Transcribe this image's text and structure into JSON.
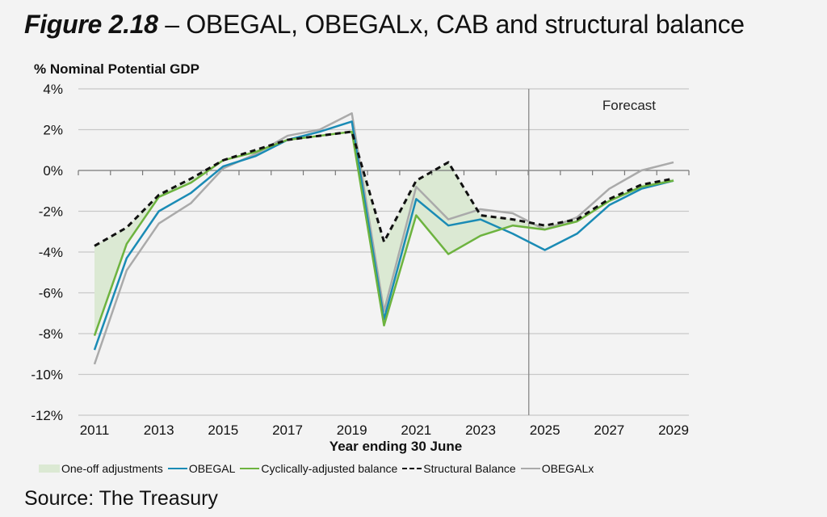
{
  "header": {
    "figure_label": "Figure 2.18",
    "title_rest": " – OBEGAL, OBEGALx, CAB and structural balance"
  },
  "source": "Source: The Treasury",
  "chart_data": {
    "type": "line",
    "title": "Figure 2.18 – OBEGAL, OBEGALx, CAB and structural balance",
    "ylabel": "% Nominal Potential GDP",
    "xlabel": "Year ending 30 June",
    "ylim": [
      -12,
      4
    ],
    "yticks": [
      4,
      2,
      0,
      -2,
      -4,
      -6,
      -8,
      -10,
      -12
    ],
    "ytick_labels": [
      "4%",
      "2%",
      "0%",
      "-2%",
      "-4%",
      "-6%",
      "-8%",
      "-10%",
      "-12%"
    ],
    "xlim": [
      2011,
      2029
    ],
    "xtick_labels": [
      "2011",
      "2013",
      "2015",
      "2017",
      "2019",
      "2021",
      "2023",
      "2025",
      "2027",
      "2029"
    ],
    "grid": true,
    "x": [
      2011,
      2012,
      2013,
      2014,
      2015,
      2016,
      2017,
      2018,
      2019,
      2020,
      2021,
      2022,
      2023,
      2024,
      2025,
      2026,
      2027,
      2028,
      2029
    ],
    "annotation": {
      "text": "Forecast",
      "divider_x": 2024.5
    },
    "area": {
      "name": "One-off adjustments",
      "between": [
        "Cyclically-adjusted balance",
        "Structural Balance"
      ],
      "color": "#dbe9d3"
    },
    "series": [
      {
        "name": "OBEGAL",
        "color": "#1a8bb5",
        "style": "solid",
        "values": [
          -8.8,
          -4.3,
          -2.0,
          -1.1,
          0.2,
          0.7,
          1.5,
          1.9,
          2.4,
          -7.3,
          -1.4,
          -2.7,
          -2.4,
          -3.1,
          -3.9,
          -3.1,
          -1.7,
          -0.9,
          -0.5
        ]
      },
      {
        "name": "Cyclically-adjusted balance",
        "color": "#6db33f",
        "style": "solid",
        "values": [
          -8.1,
          -3.6,
          -1.3,
          -0.6,
          0.5,
          0.9,
          1.5,
          1.7,
          1.9,
          -7.6,
          -2.2,
          -4.1,
          -3.2,
          -2.7,
          -2.9,
          -2.5,
          -1.5,
          -0.8,
          -0.5
        ]
      },
      {
        "name": "Structural Balance",
        "color": "#111111",
        "style": "dashed",
        "values": [
          -3.7,
          -2.8,
          -1.2,
          -0.4,
          0.5,
          1.0,
          1.5,
          1.7,
          1.9,
          -3.5,
          -0.5,
          0.4,
          -2.2,
          -2.4,
          -2.7,
          -2.4,
          -1.4,
          -0.7,
          -0.4
        ]
      },
      {
        "name": "OBEGALx",
        "color": "#aaaaaa",
        "style": "solid",
        "values": [
          -9.5,
          -4.9,
          -2.6,
          -1.6,
          0.1,
          0.8,
          1.7,
          2.0,
          2.8,
          -6.9,
          -0.8,
          -2.4,
          -1.9,
          -2.1,
          -2.9,
          -2.3,
          -0.9,
          0.0,
          0.4
        ]
      }
    ],
    "legend": {
      "position": "bottom",
      "entries": [
        "One-off adjustments",
        "OBEGAL",
        "Cyclically-adjusted balance",
        "Structural Balance",
        "OBEGALx"
      ]
    }
  }
}
